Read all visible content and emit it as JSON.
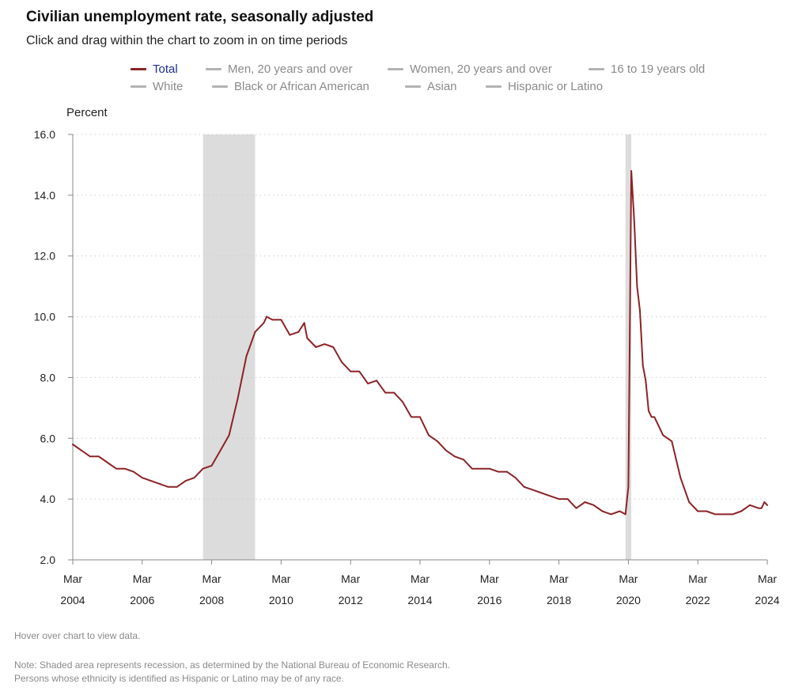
{
  "header": {
    "title": "Civilian unemployment rate, seasonally adjusted",
    "subtitle": "Click and drag within the chart to zoom in on time periods"
  },
  "legend": [
    {
      "label": "Total",
      "active": true
    },
    {
      "label": "Men, 20 years and over",
      "active": false
    },
    {
      "label": "Women, 20 years and over",
      "active": false
    },
    {
      "label": "16 to 19 years old",
      "active": false
    },
    {
      "label": "White",
      "active": false
    },
    {
      "label": "Black or African American",
      "active": false
    },
    {
      "label": "Asian",
      "active": false
    },
    {
      "label": "Hispanic or Latino",
      "active": false
    }
  ],
  "footer": {
    "hover_note": "Hover over chart to view data.",
    "note_line1": "Note: Shaded area represents recession, as determined by the National Bureau of Economic Research.",
    "note_line2": "Persons whose ethnicity is identified as Hispanic or Latino may be of any race."
  },
  "colors": {
    "series_total": "#8b2326",
    "inactive_series": "#b3b3b3",
    "recession": "#dcdcdc",
    "axis": "#888888",
    "grid": "#cccccc",
    "legend_active_text": "#1c2f8c",
    "legend_inactive_text": "#8a8a8a"
  },
  "chart_data": {
    "type": "line",
    "ylabel": "Percent",
    "ylim": [
      2.0,
      16.0
    ],
    "yticks": [
      "2.0",
      "4.0",
      "6.0",
      "8.0",
      "10.0",
      "12.0",
      "14.0",
      "16.0"
    ],
    "xlim": [
      "2004-03",
      "2024-03"
    ],
    "xticks": [
      {
        "month": "Mar",
        "year": "2004",
        "date": "2004-03"
      },
      {
        "month": "Mar",
        "year": "2006",
        "date": "2006-03"
      },
      {
        "month": "Mar",
        "year": "2008",
        "date": "2008-03"
      },
      {
        "month": "Mar",
        "year": "2010",
        "date": "2010-03"
      },
      {
        "month": "Mar",
        "year": "2012",
        "date": "2012-03"
      },
      {
        "month": "Mar",
        "year": "2014",
        "date": "2014-03"
      },
      {
        "month": "Mar",
        "year": "2016",
        "date": "2016-03"
      },
      {
        "month": "Mar",
        "year": "2018",
        "date": "2018-03"
      },
      {
        "month": "Mar",
        "year": "2020",
        "date": "2020-03"
      },
      {
        "month": "Mar",
        "year": "2022",
        "date": "2022-03"
      },
      {
        "month": "Mar",
        "year": "2024",
        "date": "2024-03"
      }
    ],
    "grid": true,
    "recessions": [
      {
        "start": "2007-12",
        "end": "2009-06"
      },
      {
        "start": "2020-02",
        "end": "2020-04"
      }
    ],
    "series": [
      {
        "name": "Total",
        "points": [
          [
            "2004-03",
            5.8
          ],
          [
            "2004-06",
            5.6
          ],
          [
            "2004-09",
            5.4
          ],
          [
            "2004-12",
            5.4
          ],
          [
            "2005-03",
            5.2
          ],
          [
            "2005-06",
            5.0
          ],
          [
            "2005-09",
            5.0
          ],
          [
            "2005-12",
            4.9
          ],
          [
            "2006-03",
            4.7
          ],
          [
            "2006-06",
            4.6
          ],
          [
            "2006-09",
            4.5
          ],
          [
            "2006-12",
            4.4
          ],
          [
            "2007-03",
            4.4
          ],
          [
            "2007-06",
            4.6
          ],
          [
            "2007-09",
            4.7
          ],
          [
            "2007-12",
            5.0
          ],
          [
            "2008-03",
            5.1
          ],
          [
            "2008-06",
            5.6
          ],
          [
            "2008-09",
            6.1
          ],
          [
            "2008-12",
            7.3
          ],
          [
            "2009-03",
            8.7
          ],
          [
            "2009-06",
            9.5
          ],
          [
            "2009-09",
            9.8
          ],
          [
            "2009-10",
            10.0
          ],
          [
            "2009-12",
            9.9
          ],
          [
            "2010-03",
            9.9
          ],
          [
            "2010-06",
            9.4
          ],
          [
            "2010-09",
            9.5
          ],
          [
            "2010-11",
            9.8
          ],
          [
            "2010-12",
            9.3
          ],
          [
            "2011-03",
            9.0
          ],
          [
            "2011-06",
            9.1
          ],
          [
            "2011-09",
            9.0
          ],
          [
            "2011-12",
            8.5
          ],
          [
            "2012-03",
            8.2
          ],
          [
            "2012-06",
            8.2
          ],
          [
            "2012-09",
            7.8
          ],
          [
            "2012-12",
            7.9
          ],
          [
            "2013-03",
            7.5
          ],
          [
            "2013-06",
            7.5
          ],
          [
            "2013-09",
            7.2
          ],
          [
            "2013-12",
            6.7
          ],
          [
            "2014-03",
            6.7
          ],
          [
            "2014-06",
            6.1
          ],
          [
            "2014-09",
            5.9
          ],
          [
            "2014-12",
            5.6
          ],
          [
            "2015-03",
            5.4
          ],
          [
            "2015-06",
            5.3
          ],
          [
            "2015-09",
            5.0
          ],
          [
            "2015-12",
            5.0
          ],
          [
            "2016-03",
            5.0
          ],
          [
            "2016-06",
            4.9
          ],
          [
            "2016-09",
            4.9
          ],
          [
            "2016-12",
            4.7
          ],
          [
            "2017-03",
            4.4
          ],
          [
            "2017-06",
            4.3
          ],
          [
            "2017-09",
            4.2
          ],
          [
            "2017-12",
            4.1
          ],
          [
            "2018-03",
            4.0
          ],
          [
            "2018-06",
            4.0
          ],
          [
            "2018-09",
            3.7
          ],
          [
            "2018-12",
            3.9
          ],
          [
            "2019-03",
            3.8
          ],
          [
            "2019-06",
            3.6
          ],
          [
            "2019-09",
            3.5
          ],
          [
            "2019-12",
            3.6
          ],
          [
            "2020-02",
            3.5
          ],
          [
            "2020-03",
            4.4
          ],
          [
            "2020-04",
            14.8
          ],
          [
            "2020-05",
            13.2
          ],
          [
            "2020-06",
            11.0
          ],
          [
            "2020-07",
            10.2
          ],
          [
            "2020-08",
            8.4
          ],
          [
            "2020-09",
            7.9
          ],
          [
            "2020-10",
            6.9
          ],
          [
            "2020-11",
            6.7
          ],
          [
            "2020-12",
            6.7
          ],
          [
            "2021-03",
            6.1
          ],
          [
            "2021-06",
            5.9
          ],
          [
            "2021-09",
            4.7
          ],
          [
            "2021-12",
            3.9
          ],
          [
            "2022-03",
            3.6
          ],
          [
            "2022-06",
            3.6
          ],
          [
            "2022-09",
            3.5
          ],
          [
            "2022-12",
            3.5
          ],
          [
            "2023-03",
            3.5
          ],
          [
            "2023-06",
            3.6
          ],
          [
            "2023-09",
            3.8
          ],
          [
            "2023-12",
            3.7
          ],
          [
            "2024-01",
            3.7
          ],
          [
            "2024-02",
            3.9
          ],
          [
            "2024-03",
            3.8
          ]
        ]
      }
    ]
  }
}
